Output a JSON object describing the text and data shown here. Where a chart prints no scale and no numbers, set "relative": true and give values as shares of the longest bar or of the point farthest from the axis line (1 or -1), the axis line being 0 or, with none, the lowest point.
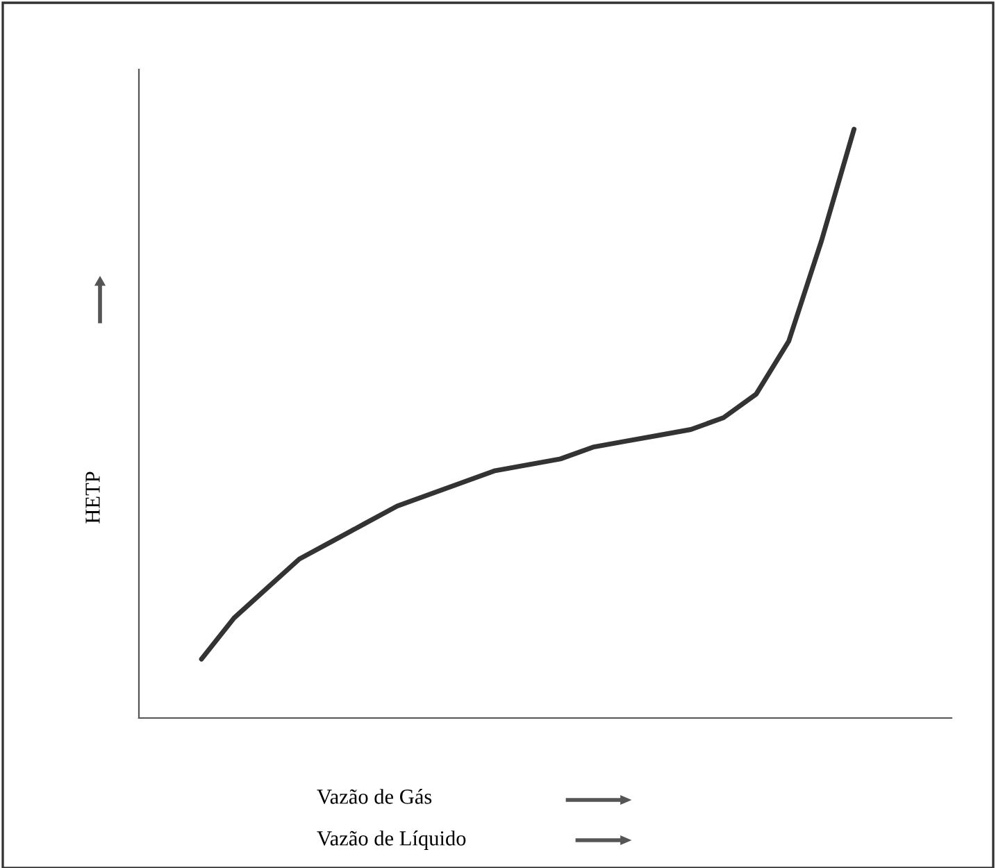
{
  "chart_data": {
    "type": "line",
    "relative": true,
    "ylabel": "HETP",
    "xlabel": "Vazão de Gás",
    "annotations": [
      "Vazão de Líquido"
    ],
    "categories": [
      null,
      null,
      null,
      null,
      null,
      null,
      null,
      null,
      null,
      null,
      null,
      null,
      null,
      null,
      null,
      null,
      null,
      null,
      null,
      null,
      null
    ],
    "series": [
      {
        "color": "#333333",
        "values": [
          0.1,
          0.17,
          0.22,
          0.27,
          0.3,
          0.33,
          0.36,
          0.38,
          0.4,
          0.42,
          0.43,
          0.44,
          0.46,
          0.47,
          0.48,
          0.49,
          0.51,
          0.55,
          0.64,
          0.81,
          1.0
        ]
      }
    ],
    "legend": false,
    "marker": "none",
    "line_style": "solid"
  }
}
